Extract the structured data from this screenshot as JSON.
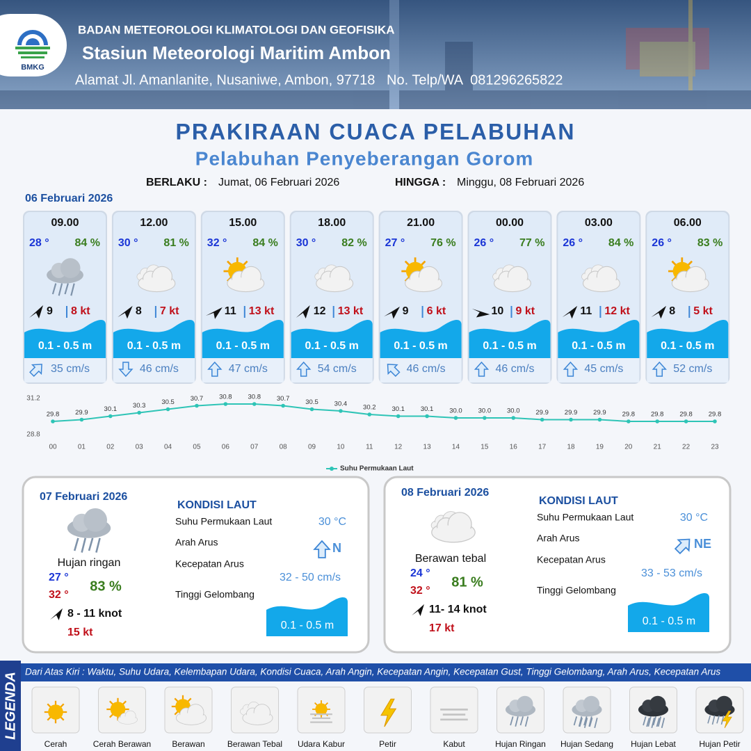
{
  "header": {
    "agency": "BADAN METEOROLOGI KLIMATOLOGI DAN GEOFISIKA",
    "station": "Stasiun Meteorologi Maritim Ambon",
    "address": "Alamat Jl. Amanlanite, Nusaniwe, Ambon, 97718   No. Telp/WA  081296265822",
    "logo": "BMKG"
  },
  "title": "PRAKIRAAN CUACA PELABUHAN",
  "subtitle": "Pelabuhan Penyeberangan Gorom",
  "validity": {
    "from_label": "BERLAKU :",
    "from": "Jumat, 06 Februari 2026",
    "to_label": "HINGGA :",
    "to": "Minggu, 08 Februari 2026"
  },
  "day1": {
    "date": "06 Februari 2026",
    "forecasts": [
      {
        "time": "09.00",
        "temp": "28 °",
        "humidity": "84 %",
        "wind": "9",
        "gust": "8 kt",
        "wave": "0.1 - 0.5 m",
        "current": "35 cm/s"
      },
      {
        "time": "12.00",
        "temp": "30 °",
        "humidity": "81 %",
        "wind": "8",
        "gust": "7 kt",
        "wave": "0.1 - 0.5 m",
        "current": "46 cm/s"
      },
      {
        "time": "15.00",
        "temp": "32 °",
        "humidity": "84 %",
        "wind": "11",
        "gust": "13 kt",
        "wave": "0.1 - 0.5 m",
        "current": "47 cm/s"
      },
      {
        "time": "18.00",
        "temp": "30 °",
        "humidity": "82 %",
        "wind": "12",
        "gust": "13 kt",
        "wave": "0.1 - 0.5 m",
        "current": "54 cm/s"
      },
      {
        "time": "21.00",
        "temp": "27 °",
        "humidity": "76 %",
        "wind": "9",
        "gust": "6 kt",
        "wave": "0.1 - 0.5 m",
        "current": "46 cm/s"
      },
      {
        "time": "00.00",
        "temp": "26 °",
        "humidity": "77 %",
        "wind": "10",
        "gust": "9 kt",
        "wave": "0.1 - 0.5 m",
        "current": "46 cm/s"
      },
      {
        "time": "03.00",
        "temp": "26 °",
        "humidity": "84 %",
        "wind": "11",
        "gust": "12 kt",
        "wave": "0.1 - 0.5 m",
        "current": "45 cm/s"
      },
      {
        "time": "06.00",
        "temp": "26 °",
        "humidity": "83 %",
        "wind": "8",
        "gust": "5 kt",
        "wave": "0.1 - 0.5 m",
        "current": "52 cm/s"
      }
    ]
  },
  "chart_data": {
    "type": "line",
    "x": [
      "00",
      "01",
      "02",
      "03",
      "04",
      "05",
      "06",
      "07",
      "08",
      "09",
      "10",
      "11",
      "12",
      "13",
      "14",
      "15",
      "16",
      "17",
      "18",
      "19",
      "20",
      "21",
      "22",
      "23"
    ],
    "series": [
      {
        "name": "Suhu Permukaan Laut",
        "color": "#2ec4b6",
        "values": [
          29.8,
          29.9,
          30.1,
          30.3,
          30.5,
          30.7,
          30.8,
          30.8,
          30.7,
          30.5,
          30.4,
          30.2,
          30.1,
          30.1,
          30.0,
          30.0,
          30.0,
          29.9,
          29.9,
          29.9,
          29.8,
          29.8,
          29.8,
          29.8
        ],
        "value_labels": [
          "29.8",
          "29.9",
          "30.1",
          "30.3",
          "30.5",
          "30.7",
          "30.8",
          "30.8",
          "30.7",
          "30.5",
          "30.4",
          "30.2",
          "30.1",
          "30.1",
          "30.0",
          "30.0",
          "30.0",
          "29.9",
          "29.9",
          "29.9",
          "29.8",
          "29.8",
          "29.8",
          "29.8"
        ]
      }
    ],
    "ylim": [
      28.8,
      31.2
    ],
    "yticks": [
      28.8,
      31.2
    ]
  },
  "day2": {
    "date": "07 Februari 2026",
    "condition": "Hujan ringan",
    "temp_min": "27 °",
    "temp_max": "32 °",
    "humidity": "83 %",
    "wind": "8  - 11 knot",
    "gust": "15 kt",
    "sea_title": "KONDISI LAUT",
    "sst_label": "Suhu Permukaan Laut",
    "sst": "30 °C",
    "current_dir_label": "Arah Arus",
    "current_dir": "N",
    "current_speed_label": "Kecepatan Arus",
    "current_speed": "32 - 50 cm/s",
    "wave_label": "Tinggi Gelombang",
    "wave": "0.1 - 0.5 m"
  },
  "day3": {
    "date": "08 Februari 2026",
    "condition": "Berawan tebal",
    "temp_min": "24 °",
    "temp_max": "32 °",
    "humidity": "81 %",
    "wind": "11- 14 knot",
    "gust": "17 kt",
    "sea_title": "KONDISI LAUT",
    "sst_label": "Suhu Permukaan Laut",
    "sst": "30 °C",
    "current_dir_label": "Arah Arus",
    "current_dir": "NE",
    "current_speed_label": "Kecepatan Arus",
    "current_speed": "33 - 53 cm/s",
    "wave_label": "Tinggi Gelombang",
    "wave": "0.1 - 0.5 m"
  },
  "legend": {
    "title": "LEGENDA",
    "description": "Dari Atas Kiri : Waktu, Suhu Udara, Kelembapan Udara, Kondisi Cuaca, Arah Angin, Kecepatan Angin, Kecepatan Gust, Tinggi Gelombang, Arah Arus, Kecepatan Arus",
    "items": [
      "Cerah",
      "Cerah Berawan",
      "Berawan",
      "Berawan Tebal",
      "Udara Kabur",
      "Petir",
      "Kabut",
      "Hujan Ringan",
      "Hujan Sedang",
      "Hujan Lebat",
      "Hujan Petir"
    ]
  }
}
